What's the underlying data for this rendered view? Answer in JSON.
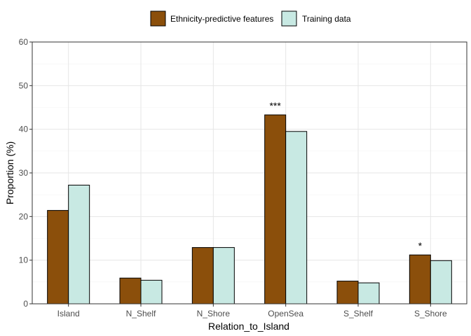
{
  "chart_data": {
    "type": "bar",
    "title": "",
    "xlabel": "Relation_to_Island",
    "ylabel": "Proportion (%)",
    "ylim": [
      0,
      60
    ],
    "yticks": [
      0,
      10,
      20,
      30,
      40,
      50,
      60
    ],
    "grid": true,
    "legend_position": "top",
    "categories": [
      "Island",
      "N_Shelf",
      "N_Shore",
      "OpenSea",
      "S_Shelf",
      "S_Shore"
    ],
    "series": [
      {
        "name": "Ethnicity-predictive features",
        "color": "#8B4F0B",
        "values": [
          21.4,
          5.9,
          12.9,
          43.3,
          5.2,
          11.2
        ]
      },
      {
        "name": "Training data",
        "color": "#C8E9E3",
        "values": [
          27.2,
          5.4,
          12.9,
          39.5,
          4.8,
          9.9
        ]
      }
    ],
    "annotations": [
      {
        "category": "OpenSea",
        "text": "***"
      },
      {
        "category": "S_Shore",
        "text": "*"
      }
    ]
  }
}
